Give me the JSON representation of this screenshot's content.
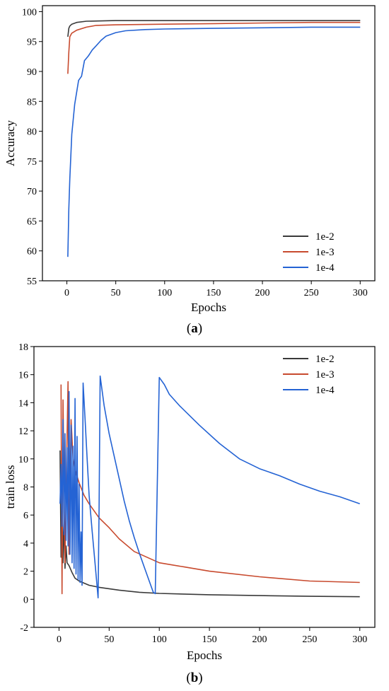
{
  "chart_data": [
    {
      "type": "line",
      "panel_label": "a",
      "xlabel": "Epochs",
      "ylabel": "Accuracy",
      "xlim": [
        -25,
        315
      ],
      "ylim": [
        55,
        101
      ],
      "xticks": [
        0,
        50,
        100,
        150,
        200,
        250,
        300
      ],
      "yticks": [
        55,
        60,
        65,
        70,
        75,
        80,
        85,
        90,
        95,
        100
      ],
      "legend_position": "bottom-right",
      "series": [
        {
          "name": "1e-2",
          "color": "#3a3a3a",
          "x": [
            1,
            2,
            3,
            5,
            10,
            20,
            50,
            100,
            150,
            200,
            250,
            300
          ],
          "y": [
            95.8,
            97.2,
            97.6,
            97.9,
            98.2,
            98.4,
            98.5,
            98.5,
            98.5,
            98.5,
            98.5,
            98.5
          ]
        },
        {
          "name": "1e-3",
          "color": "#c84a2e",
          "x": [
            1,
            2,
            3,
            5,
            10,
            20,
            30,
            50,
            100,
            150,
            200,
            250,
            300
          ],
          "y": [
            89.6,
            93.2,
            95.8,
            96.4,
            96.9,
            97.4,
            97.7,
            97.8,
            97.9,
            98.0,
            98.1,
            98.2,
            98.2
          ]
        },
        {
          "name": "1e-4",
          "color": "#2463d4",
          "x": [
            1,
            2,
            3,
            5,
            8,
            12,
            15,
            18,
            22,
            26,
            30,
            35,
            40,
            50,
            60,
            80,
            100,
            150,
            200,
            250,
            300
          ],
          "y": [
            59.0,
            67.0,
            72.0,
            79.5,
            84.5,
            88.5,
            89.2,
            91.8,
            92.6,
            93.6,
            94.3,
            95.2,
            95.9,
            96.5,
            96.8,
            97.0,
            97.1,
            97.2,
            97.3,
            97.4,
            97.4
          ]
        }
      ]
    },
    {
      "type": "line",
      "panel_label": "b",
      "xlabel": "Epochs",
      "ylabel": "train loss",
      "xlim": [
        -25,
        315
      ],
      "ylim": [
        -2,
        18
      ],
      "xticks": [
        0,
        50,
        100,
        150,
        200,
        250,
        300
      ],
      "yticks": [
        -2,
        0,
        2,
        4,
        6,
        8,
        10,
        12,
        14,
        16,
        18
      ],
      "legend_position": "top-right",
      "series": [
        {
          "name": "1e-2",
          "color": "#3a3a3a",
          "x": [
            1,
            2,
            3,
            4,
            5,
            6,
            7,
            8,
            10,
            13,
            16,
            20,
            30,
            40,
            60,
            80,
            100,
            150,
            200,
            250,
            300
          ],
          "y": [
            10.6,
            3.0,
            7.2,
            2.6,
            5.8,
            2.2,
            3.8,
            2.6,
            2.4,
            1.9,
            1.5,
            1.3,
            1.0,
            0.85,
            0.65,
            0.5,
            0.42,
            0.32,
            0.26,
            0.21,
            0.18
          ]
        },
        {
          "name": "1e-3",
          "color": "#c84a2e",
          "x": [
            2,
            3,
            4,
            6,
            8,
            9,
            10,
            12,
            14,
            17,
            20,
            25,
            30,
            40,
            50,
            60,
            75,
            100,
            125,
            150,
            200,
            250,
            300
          ],
          "y": [
            15.3,
            0.4,
            14.2,
            2.6,
            11.5,
            15.5,
            3.2,
            12.8,
            10.0,
            9.0,
            8.3,
            7.4,
            6.8,
            5.8,
            5.1,
            4.3,
            3.4,
            2.6,
            2.3,
            2.0,
            1.6,
            1.3,
            1.2
          ]
        },
        {
          "name": "1e-4",
          "color": "#2463d4",
          "x": [
            1,
            2,
            3,
            4,
            5,
            6,
            7,
            8,
            9,
            10,
            11,
            12,
            13,
            14,
            15,
            16,
            17,
            18,
            19,
            20,
            21,
            22,
            23,
            24,
            26,
            28,
            30,
            33,
            36,
            39,
            40,
            41,
            45,
            50,
            55,
            60,
            65,
            70,
            75,
            80,
            85,
            90,
            94,
            96,
            100,
            105,
            110,
            120,
            140,
            160,
            180,
            200,
            220,
            240,
            260,
            280,
            300
          ],
          "y": [
            6.8,
            9.6,
            5.2,
            12.8,
            4.6,
            11.8,
            4.2,
            10.8,
            3.8,
            14.8,
            3.2,
            12.4,
            2.6,
            10.9,
            2.2,
            14.3,
            1.8,
            11.6,
            1.4,
            8.2,
            1.2,
            4.8,
            1.0,
            15.4,
            12.8,
            10.1,
            7.4,
            4.9,
            2.5,
            0.1,
            6.5,
            15.9,
            13.8,
            11.8,
            10.2,
            8.6,
            7.0,
            5.6,
            4.4,
            3.3,
            2.3,
            1.3,
            0.5,
            0.4,
            15.8,
            15.3,
            14.6,
            13.8,
            12.4,
            11.1,
            10.0,
            9.3,
            8.8,
            8.2,
            7.7,
            7.3,
            6.8
          ]
        }
      ]
    }
  ]
}
